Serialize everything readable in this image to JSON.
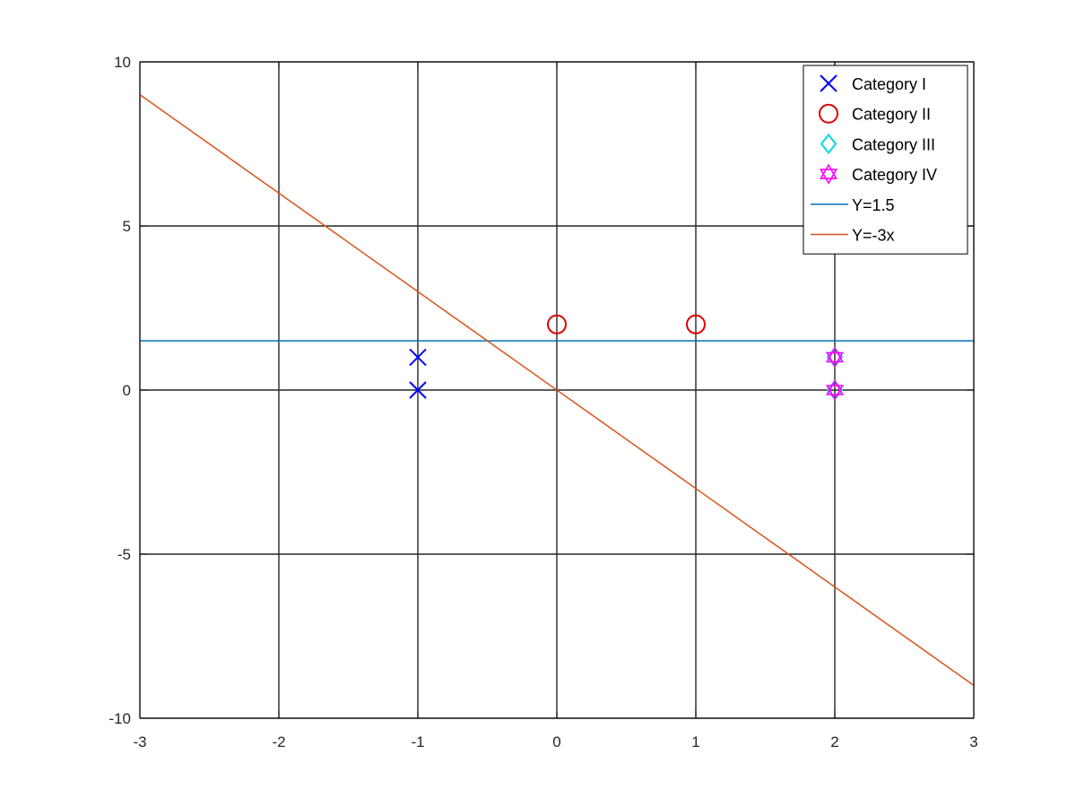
{
  "chart_data": {
    "type": "scatter",
    "xlim": [
      -3,
      3
    ],
    "ylim": [
      -10,
      10
    ],
    "xticks": [
      -3,
      -2,
      -1,
      0,
      1,
      2,
      3
    ],
    "yticks": [
      -10,
      -5,
      0,
      5,
      10
    ],
    "x_tick_labels": [
      "-3",
      "-2",
      "-1",
      "0",
      "1",
      "2",
      "3"
    ],
    "y_tick_labels": [
      "-10",
      "-5",
      "0",
      "5",
      "10"
    ],
    "grid": true,
    "legend_position": "top-right",
    "series": [
      {
        "name": "Category I",
        "marker": "x",
        "color": "#0000ff",
        "points": [
          [
            -1,
            0
          ],
          [
            -1,
            1
          ]
        ]
      },
      {
        "name": "Category II",
        "marker": "circle",
        "color": "#dd0000",
        "points": [
          [
            0,
            2
          ],
          [
            1,
            2
          ]
        ]
      },
      {
        "name": "Category III",
        "marker": "diamond",
        "color": "#00dddd",
        "points": [
          [
            2,
            0
          ],
          [
            2,
            1
          ]
        ]
      },
      {
        "name": "Category IV",
        "marker": "hexagram",
        "color": "#ff00ff",
        "points": [
          [
            2,
            0
          ],
          [
            2,
            1
          ]
        ]
      }
    ],
    "lines": [
      {
        "name": "Y=1.5",
        "color": "#0072bd",
        "slope": 0,
        "intercept": 1.5
      },
      {
        "name": "Y=-3x",
        "color": "#d95319",
        "slope": -3,
        "intercept": 0
      }
    ]
  }
}
